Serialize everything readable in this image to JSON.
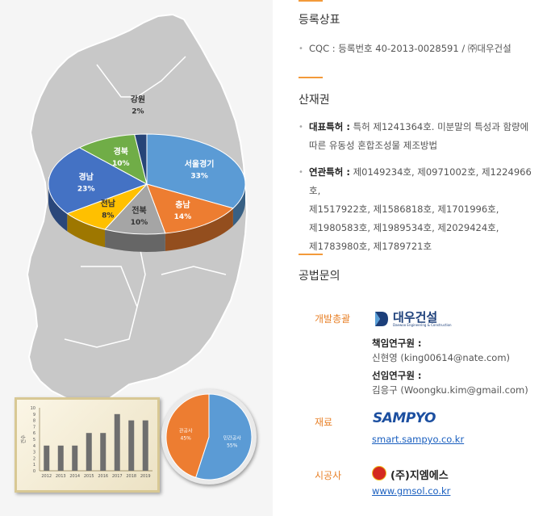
{
  "pie_main": {
    "slices": [
      {
        "label": "서울경기",
        "pct": "33%",
        "value": 33,
        "color": "#5b9bd5"
      },
      {
        "label": "충남",
        "pct": "14%",
        "value": 14,
        "color": "#ed7d31"
      },
      {
        "label": "전북",
        "pct": "10%",
        "value": 10,
        "color": "#a5a5a5"
      },
      {
        "label": "전남",
        "pct": "8%",
        "value": 8,
        "color": "#ffc000"
      },
      {
        "label": "경남",
        "pct": "23%",
        "value": 23,
        "color": "#4472c4"
      },
      {
        "label": "경북",
        "pct": "10%",
        "value": 10,
        "color": "#70ad47"
      },
      {
        "label": "강원",
        "pct": "2%",
        "value": 2,
        "color": "#264478"
      }
    ]
  },
  "chart_data": [
    {
      "type": "pie",
      "categories": [
        "서울경기",
        "충남",
        "전북",
        "전남",
        "경남",
        "경북",
        "강원"
      ],
      "values": [
        33,
        14,
        10,
        8,
        23,
        10,
        2
      ]
    },
    {
      "type": "bar",
      "categories": [
        "2012",
        "2013",
        "2014",
        "2015",
        "2016",
        "2017",
        "2018",
        "2019"
      ],
      "values": [
        4,
        4,
        4,
        6,
        6,
        9,
        8,
        8
      ],
      "ylabel": "건수",
      "ylim": [
        0,
        10
      ],
      "yticks": [
        "0",
        "1",
        "2",
        "3",
        "4",
        "5",
        "6",
        "7",
        "8",
        "9",
        "10"
      ]
    },
    {
      "type": "pie",
      "categories": [
        "관공사",
        "민간공사"
      ],
      "values": [
        45,
        55
      ],
      "labels": [
        "45%",
        "55%"
      ]
    }
  ],
  "sections": {
    "trademark": {
      "title": "등록상표",
      "item": "CQC : 등록번호 40-2013-0028591 / ㈜대우건설"
    },
    "ip": {
      "title": "산재권",
      "rep_label": "대표특허 :",
      "rep_line1": " 특허 제1241364호. 미분말의 특성과 함량에",
      "rep_line2": "따른 유동성 혼합조성물 제조방법",
      "rel_label": "연관특허 :",
      "rel_line1": " 제0149234호, 제0971002호, 제1224966호,",
      "rel_line2": "제1517922호, 제1586818호, 제1701996호,",
      "rel_line3": "제1980583호, 제1989534호, 제2029424호,",
      "rel_line4": "제1783980호, 제1789721호"
    },
    "inquiry": {
      "title": "공법문의",
      "dev_label": "개발총괄",
      "dev_logo": "대우건설",
      "dev_logo_sub": "Daewoo Engineering & Construction",
      "researcher1_label": "책임연구원 :",
      "researcher1": "신현영 (king00614@nate.com)",
      "researcher2_label": "선임연구원 :",
      "researcher2": "김응구 (Woongku.kim@gmail.com)",
      "material_label": "재료",
      "material_logo": "SAMPYO",
      "material_url": "smart.sampyo.co.kr",
      "contractor_label": "시공사",
      "contractor_name": "(주)지엠에스",
      "contractor_url": "www.gmsol.co.kr"
    }
  },
  "colors": {
    "accent": "#f39a3a",
    "map": "#c8c8c8",
    "link": "#1a5fbf",
    "label_orange": "#e8822a"
  }
}
